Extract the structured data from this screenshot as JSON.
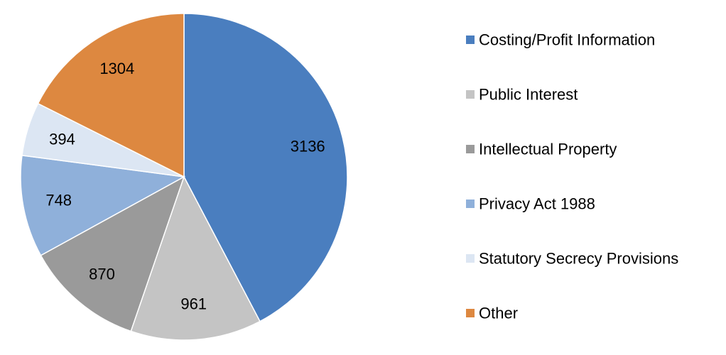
{
  "chart_data": {
    "type": "pie",
    "title": "",
    "categories": [
      "Costing/Profit Information",
      "Public Interest",
      "Intellectual Property",
      "Privacy Act 1988",
      "Statutory Secrecy Provisions",
      "Other"
    ],
    "values": [
      3136,
      961,
      870,
      748,
      394,
      1304
    ],
    "colors": [
      "#4a7ebf",
      "#c4c4c4",
      "#9a9a9a",
      "#8fb0da",
      "#dce6f3",
      "#dd8840"
    ],
    "legend_position": "right"
  }
}
